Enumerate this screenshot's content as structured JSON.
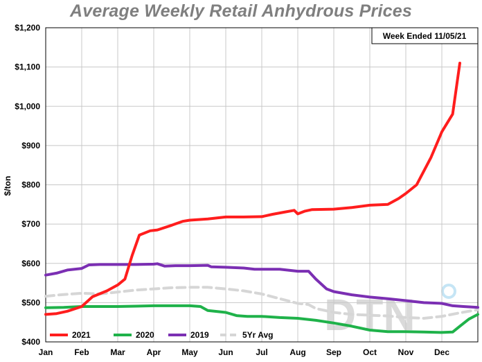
{
  "chart_data": {
    "type": "line",
    "title": "Average Weekly Retail Anhydrous Prices",
    "ylabel": "$/ton",
    "xlabel": "",
    "note": "Week Ended 11/05/21",
    "watermark": "DTN",
    "ylim": [
      400,
      1200
    ],
    "yticks": [
      400,
      500,
      600,
      700,
      800,
      900,
      1000,
      1100,
      1200
    ],
    "ytick_labels": [
      "$400",
      "$500",
      "$600",
      "$700",
      "$800",
      "$900",
      "$1,000",
      "$1,100",
      "$1,200"
    ],
    "xlim": [
      0,
      12
    ],
    "month_labels": [
      "Jan",
      "Feb",
      "Mar",
      "Apr",
      "May",
      "Jun",
      "Jul",
      "Aug",
      "Sep",
      "Oct",
      "Nov",
      "Dec"
    ],
    "grid": true,
    "legend_position": "bottom-left",
    "series": [
      {
        "name": "5Yr Avg",
        "color": "#d6d6d6",
        "dashed": true,
        "points": [
          [
            0,
            516
          ],
          [
            0.4,
            520
          ],
          [
            1,
            524
          ],
          [
            1.5,
            522
          ],
          [
            2,
            527
          ],
          [
            2.5,
            532
          ],
          [
            3,
            535
          ],
          [
            3.5,
            538
          ],
          [
            4,
            539
          ],
          [
            4.5,
            539
          ],
          [
            5,
            535
          ],
          [
            5.5,
            530
          ],
          [
            6,
            522
          ],
          [
            6.5,
            510
          ],
          [
            7,
            498
          ],
          [
            7.3,
            495
          ],
          [
            7.5,
            485
          ],
          [
            8,
            475
          ],
          [
            8.5,
            470
          ],
          [
            9,
            468
          ],
          [
            9.5,
            466
          ],
          [
            10,
            462
          ],
          [
            10.5,
            460
          ],
          [
            11,
            465
          ],
          [
            11.5,
            474
          ],
          [
            12,
            482
          ]
        ]
      },
      {
        "name": "2020",
        "color": "#1fb24a",
        "dashed": false,
        "points": [
          [
            0,
            487
          ],
          [
            0.5,
            488
          ],
          [
            1,
            490
          ],
          [
            1.5,
            490
          ],
          [
            2,
            490
          ],
          [
            2.5,
            491
          ],
          [
            3,
            492
          ],
          [
            3.5,
            492
          ],
          [
            4,
            492
          ],
          [
            4.3,
            490
          ],
          [
            4.5,
            480
          ],
          [
            5,
            475
          ],
          [
            5.3,
            467
          ],
          [
            5.6,
            465
          ],
          [
            6,
            465
          ],
          [
            6.5,
            462
          ],
          [
            7,
            460
          ],
          [
            7.5,
            455
          ],
          [
            8,
            448
          ],
          [
            8.5,
            440
          ],
          [
            9,
            430
          ],
          [
            9.5,
            426
          ],
          [
            10,
            426
          ],
          [
            10.5,
            425
          ],
          [
            11,
            424
          ],
          [
            11.3,
            425
          ],
          [
            11.5,
            440
          ],
          [
            11.75,
            458
          ],
          [
            12,
            470
          ]
        ]
      },
      {
        "name": "2019",
        "color": "#7b2fb3",
        "dashed": false,
        "points": [
          [
            0,
            570
          ],
          [
            0.3,
            575
          ],
          [
            0.6,
            583
          ],
          [
            1,
            587
          ],
          [
            1.2,
            596
          ],
          [
            1.5,
            597
          ],
          [
            2,
            597
          ],
          [
            2.5,
            597
          ],
          [
            3,
            598
          ],
          [
            3.1,
            599
          ],
          [
            3.3,
            593
          ],
          [
            3.6,
            594
          ],
          [
            4,
            594
          ],
          [
            4.5,
            595
          ],
          [
            4.6,
            591
          ],
          [
            5,
            590
          ],
          [
            5.5,
            588
          ],
          [
            5.8,
            585
          ],
          [
            6,
            585
          ],
          [
            6.5,
            585
          ],
          [
            7,
            580
          ],
          [
            7.3,
            580
          ],
          [
            7.5,
            560
          ],
          [
            7.8,
            535
          ],
          [
            8,
            528
          ],
          [
            8.5,
            520
          ],
          [
            9,
            514
          ],
          [
            9.5,
            510
          ],
          [
            10,
            505
          ],
          [
            10.5,
            500
          ],
          [
            11,
            498
          ],
          [
            11.3,
            492
          ],
          [
            11.6,
            490
          ],
          [
            12,
            488
          ]
        ]
      },
      {
        "name": "2021",
        "color": "#ff1d1d",
        "dashed": false,
        "points": [
          [
            0,
            470
          ],
          [
            0.3,
            472
          ],
          [
            0.6,
            478
          ],
          [
            1,
            490
          ],
          [
            1.3,
            515
          ],
          [
            1.7,
            530
          ],
          [
            2,
            545
          ],
          [
            2.2,
            560
          ],
          [
            2.4,
            620
          ],
          [
            2.6,
            672
          ],
          [
            2.9,
            683
          ],
          [
            3.1,
            685
          ],
          [
            3.5,
            697
          ],
          [
            3.8,
            707
          ],
          [
            4,
            710
          ],
          [
            4.5,
            713
          ],
          [
            5,
            718
          ],
          [
            5.5,
            718
          ],
          [
            6,
            719
          ],
          [
            6.3,
            725
          ],
          [
            6.6,
            730
          ],
          [
            6.9,
            735
          ],
          [
            7.0,
            726
          ],
          [
            7.2,
            733
          ],
          [
            7.4,
            737
          ],
          [
            8,
            738
          ],
          [
            8.5,
            742
          ],
          [
            9,
            748
          ],
          [
            9.5,
            750
          ],
          [
            9.8,
            765
          ],
          [
            10,
            778
          ],
          [
            10.3,
            800
          ],
          [
            10.7,
            870
          ],
          [
            11,
            935
          ],
          [
            11.3,
            980
          ],
          [
            11.5,
            1110
          ]
        ]
      }
    ],
    "legend": [
      {
        "label": "2021",
        "color": "#ff1d1d"
      },
      {
        "label": "2020",
        "color": "#1fb24a"
      },
      {
        "label": "2019",
        "color": "#7b2fb3"
      },
      {
        "label": "5Yr Avg",
        "color": "#d6d6d6"
      }
    ]
  }
}
